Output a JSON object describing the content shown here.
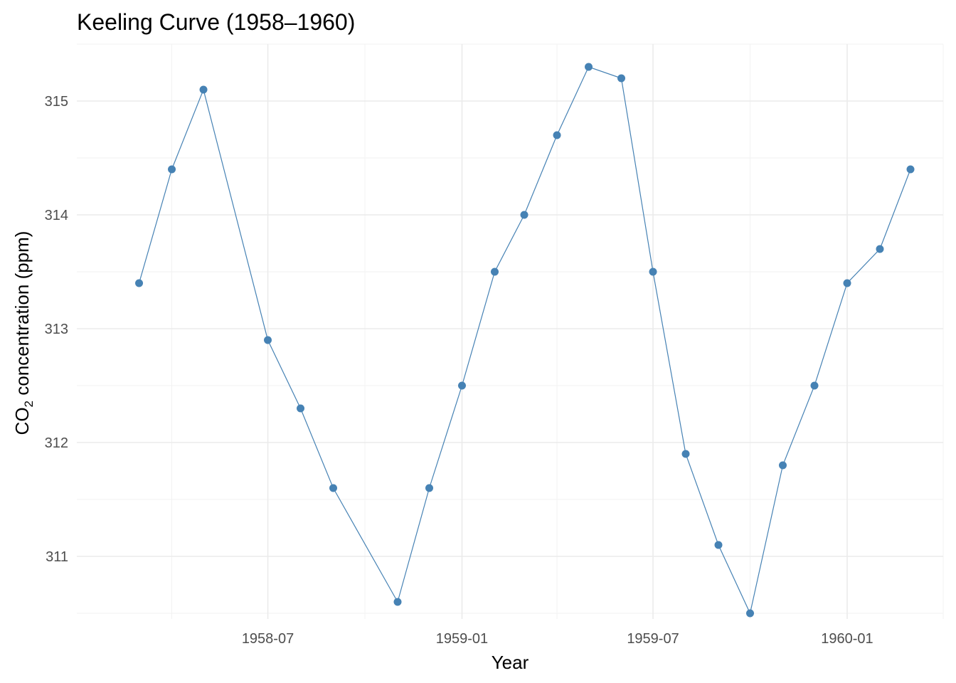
{
  "chart_data": {
    "type": "line",
    "title": "Keeling Curve (1958–1960)",
    "xlabel": "Year",
    "ylabel_main": "CO",
    "ylabel_sub": "2",
    "ylabel_rest": " concentration (ppm)",
    "x_axis_type": "date",
    "xlim": [
      "1958-01-01",
      "1960-04-01"
    ],
    "ylim": [
      310.45,
      315.5
    ],
    "x_ticks": [
      "1958-07-01",
      "1959-01-01",
      "1959-07-01",
      "1960-01-01"
    ],
    "x_tick_labels": [
      "1958-07",
      "1959-01",
      "1959-07",
      "1960-01"
    ],
    "y_ticks": [
      311,
      312,
      313,
      314,
      315
    ],
    "y_tick_labels": [
      "311",
      "312",
      "313",
      "314",
      "315"
    ],
    "grid": true,
    "color": "#4682b4",
    "series": [
      {
        "x": [
          "1958-03-01",
          "1958-04-01",
          "1958-05-01",
          "1958-07-01",
          "1958-08-01",
          "1958-09-01",
          "1958-11-01",
          "1958-12-01",
          "1959-01-01",
          "1959-02-01",
          "1959-03-01",
          "1959-04-01",
          "1959-05-01",
          "1959-06-01",
          "1959-07-01",
          "1959-08-01",
          "1959-09-01",
          "1959-10-01",
          "1959-11-01",
          "1959-12-01",
          "1960-01-01",
          "1960-02-01",
          "1960-03-01"
        ],
        "y": [
          313.4,
          314.4,
          315.1,
          312.9,
          312.3,
          311.6,
          310.6,
          311.6,
          312.5,
          313.5,
          314.0,
          314.7,
          315.3,
          315.2,
          313.5,
          311.9,
          311.1,
          310.5,
          311.8,
          312.5,
          313.4,
          313.7,
          314.4
        ]
      }
    ]
  }
}
